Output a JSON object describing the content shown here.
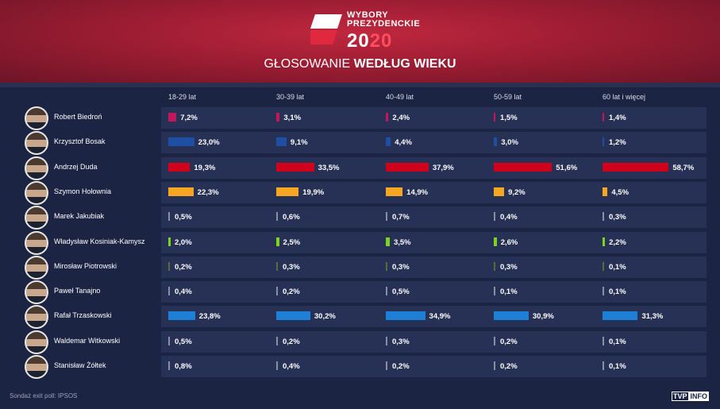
{
  "header": {
    "logo_line1": "WYBORY",
    "logo_line2": "PREZYDENCKIE",
    "logo_year_a": "20",
    "logo_year_b": "20",
    "subtitle_light": "GŁOSOWANIE",
    "subtitle_bold": "WEDŁUG WIEKU"
  },
  "footer": {
    "source": "Sondaż exit poll: IPSOS",
    "brand_a": "TVP",
    "brand_b": "INFO"
  },
  "chart_data": {
    "type": "bar",
    "categories": [
      "18-29 lat",
      "30-39 lat",
      "40-49 lat",
      "50-59 lat",
      "60 lat i więcej"
    ],
    "series": [
      {
        "name": "Robert Biedroń",
        "color": "#c2185b",
        "values": [
          7.2,
          3.1,
          2.4,
          1.5,
          1.4
        ],
        "labels": [
          "7,2%",
          "3,1%",
          "2,4%",
          "1,5%",
          "1,4%"
        ]
      },
      {
        "name": "Krzysztof Bosak",
        "color": "#1e4fa3",
        "values": [
          23.0,
          9.1,
          4.4,
          3.0,
          1.2
        ],
        "labels": [
          "23,0%",
          "9,1%",
          "4,4%",
          "3,0%",
          "1,2%"
        ]
      },
      {
        "name": "Andrzej Duda",
        "color": "#d0021b",
        "values": [
          19.3,
          33.5,
          37.9,
          51.6,
          58.7
        ],
        "labels": [
          "19,3%",
          "33,5%",
          "37,9%",
          "51,6%",
          "58,7%"
        ]
      },
      {
        "name": "Szymon Hołownia",
        "color": "#f5a623",
        "values": [
          22.3,
          19.9,
          14.9,
          9.2,
          4.5
        ],
        "labels": [
          "22,3%",
          "19,9%",
          "14,9%",
          "9,2%",
          "4,5%"
        ]
      },
      {
        "name": "Marek Jakubiak",
        "color": "#8a8fa3",
        "values": [
          0.5,
          0.6,
          0.7,
          0.4,
          0.3
        ],
        "labels": [
          "0,5%",
          "0,6%",
          "0,7%",
          "0,4%",
          "0,3%"
        ]
      },
      {
        "name": "Władysław Kosiniak-Kamysz",
        "color": "#7ed321",
        "values": [
          2.0,
          2.5,
          3.5,
          2.6,
          2.2
        ],
        "labels": [
          "2,0%",
          "2,5%",
          "3,5%",
          "2,6%",
          "2,2%"
        ]
      },
      {
        "name": "Mirosław Piotrowski",
        "color": "#5a6a3a",
        "values": [
          0.2,
          0.3,
          0.3,
          0.3,
          0.1
        ],
        "labels": [
          "0,2%",
          "0,3%",
          "0,3%",
          "0,3%",
          "0,1%"
        ]
      },
      {
        "name": "Paweł Tanajno",
        "color": "#8a8fa3",
        "values": [
          0.4,
          0.2,
          0.5,
          0.1,
          0.1
        ],
        "labels": [
          "0,4%",
          "0,2%",
          "0,5%",
          "0,1%",
          "0,1%"
        ]
      },
      {
        "name": "Rafał Trzaskowski",
        "color": "#1e7fd6",
        "values": [
          23.8,
          30.2,
          34.9,
          30.9,
          31.3
        ],
        "labels": [
          "23,8%",
          "30,2%",
          "34,9%",
          "30,9%",
          "31,3%"
        ]
      },
      {
        "name": "Waldemar Witkowski",
        "color": "#8a8fa3",
        "values": [
          0.5,
          0.2,
          0.3,
          0.2,
          0.1
        ],
        "labels": [
          "0,5%",
          "0,2%",
          "0,3%",
          "0,2%",
          "0,1%"
        ]
      },
      {
        "name": "Stanisław Żółtek",
        "color": "#8a8fa3",
        "values": [
          0.8,
          0.4,
          0.2,
          0.2,
          0.1
        ],
        "labels": [
          "0,8%",
          "0,4%",
          "0,2%",
          "0,2%",
          "0,1%"
        ]
      }
    ]
  }
}
